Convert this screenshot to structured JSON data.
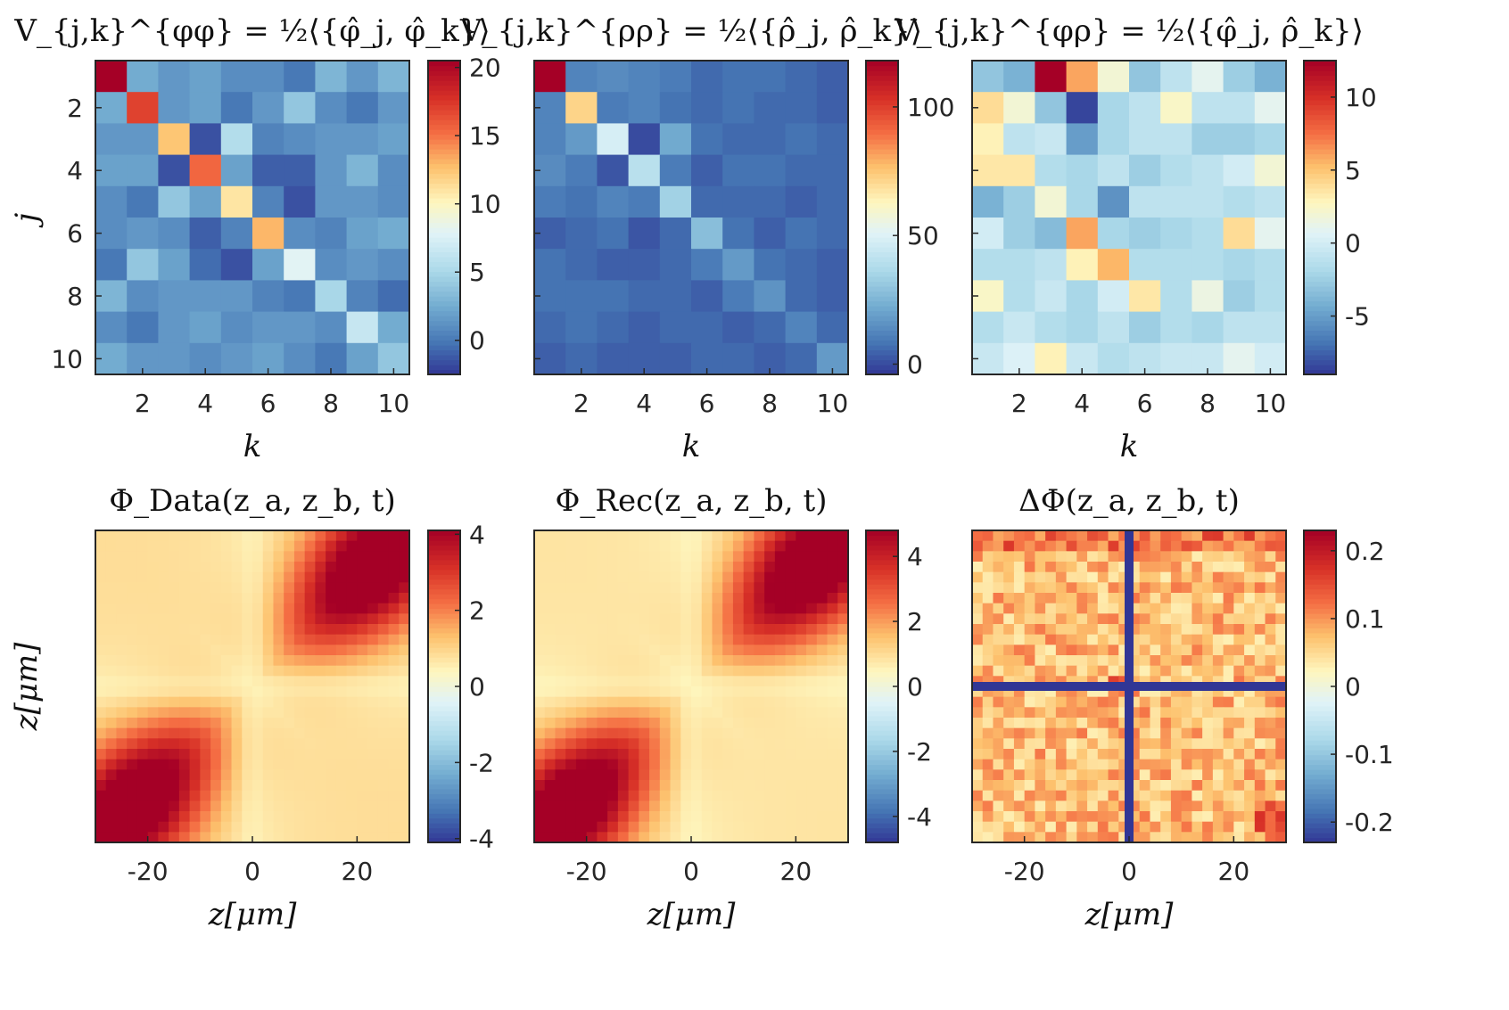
{
  "chart_data": [
    {
      "type": "heatmap",
      "title": "V_{j,k}^{φφ} = ½⟨{φ̂_j, φ̂_k}⟩",
      "xlabel": "k",
      "ylabel": "j",
      "x_ticks": [
        "2",
        "4",
        "6",
        "8",
        "10"
      ],
      "y_ticks": [
        "2",
        "4",
        "6",
        "8",
        "10"
      ],
      "colorbar": {
        "range": [
          -2.5,
          20.5
        ],
        "ticks": [
          "0",
          "5",
          "10",
          "15",
          "20"
        ]
      },
      "values": [
        [
          20.5,
          2.5,
          1.5,
          2.0,
          1.0,
          1.0,
          0.0,
          3.0,
          1.5,
          3.0
        ],
        [
          2.5,
          17.0,
          1.5,
          2.0,
          0.0,
          1.5,
          4.0,
          1.0,
          0.0,
          1.5
        ],
        [
          1.5,
          1.5,
          12.5,
          -1.5,
          5.5,
          0.5,
          1.0,
          1.5,
          1.5,
          2.0
        ],
        [
          2.0,
          2.0,
          -1.5,
          15.5,
          2.0,
          -1.0,
          -1.0,
          1.5,
          3.0,
          1.0
        ],
        [
          1.0,
          0.0,
          4.0,
          2.0,
          11.0,
          0.5,
          -1.5,
          1.5,
          1.5,
          1.0
        ],
        [
          1.0,
          1.5,
          1.0,
          -1.0,
          0.5,
          13.0,
          1.0,
          0.5,
          2.0,
          2.5
        ],
        [
          0.0,
          4.0,
          2.0,
          -0.5,
          -1.5,
          2.0,
          8.0,
          1.0,
          1.5,
          1.0
        ],
        [
          3.0,
          1.0,
          1.5,
          1.5,
          1.5,
          0.5,
          0.0,
          5.0,
          0.5,
          -0.5
        ],
        [
          1.0,
          0.0,
          1.5,
          2.0,
          1.0,
          1.5,
          1.5,
          1.0,
          6.5,
          2.5
        ],
        [
          2.5,
          1.5,
          1.5,
          1.0,
          1.5,
          2.0,
          1.0,
          0.0,
          2.0,
          4.0
        ]
      ]
    },
    {
      "type": "heatmap",
      "title": "V_{j,k}^{ρρ} = ½⟨{ρ̂_j, ρ̂_k}⟩",
      "xlabel": "k",
      "ylabel": "",
      "x_ticks": [
        "2",
        "4",
        "6",
        "8",
        "10"
      ],
      "y_ticks": [],
      "colorbar": {
        "range": [
          -4,
          118
        ],
        "ticks": [
          "0",
          "50",
          "100"
        ]
      },
      "values": [
        [
          118,
          12,
          14,
          12,
          10,
          6,
          8,
          8,
          6,
          4
        ],
        [
          12,
          72,
          10,
          12,
          8,
          6,
          8,
          6,
          6,
          4
        ],
        [
          12,
          18,
          48,
          0,
          22,
          8,
          6,
          6,
          8,
          6
        ],
        [
          14,
          10,
          2,
          40,
          10,
          4,
          8,
          8,
          6,
          6
        ],
        [
          10,
          8,
          12,
          10,
          34,
          6,
          6,
          6,
          4,
          6
        ],
        [
          4,
          6,
          8,
          2,
          6,
          28,
          8,
          4,
          8,
          6
        ],
        [
          8,
          6,
          4,
          4,
          6,
          10,
          18,
          8,
          6,
          4
        ],
        [
          8,
          8,
          8,
          6,
          6,
          4,
          10,
          16,
          6,
          4
        ],
        [
          6,
          8,
          6,
          4,
          6,
          6,
          4,
          6,
          12,
          6
        ],
        [
          4,
          6,
          4,
          4,
          4,
          6,
          6,
          4,
          6,
          18
        ]
      ]
    },
    {
      "type": "heatmap",
      "title": "V_{j,k}^{φρ} = ½⟨{φ̂_j, ρ̂_k}⟩",
      "xlabel": "k",
      "ylabel": "",
      "x_ticks": [
        "2",
        "4",
        "6",
        "8",
        "10"
      ],
      "y_ticks": [],
      "colorbar": {
        "range": [
          -9,
          12.5
        ],
        "ticks": [
          "-5",
          "0",
          "5",
          "10"
        ]
      },
      "values": [
        [
          -3,
          -4,
          12.5,
          6,
          2,
          -3,
          -1,
          1,
          -2.5,
          -4
        ],
        [
          4,
          2,
          -3,
          -8.5,
          -2,
          -1,
          2.5,
          -1,
          -1,
          1
        ],
        [
          3,
          -1,
          -0.5,
          -5,
          -2,
          -1,
          -1,
          -2.5,
          -2.5,
          -2
        ],
        [
          3.5,
          3.5,
          -1.5,
          -2,
          -1,
          -2.5,
          -1.5,
          -1,
          0,
          2
        ],
        [
          -4,
          -2.5,
          2,
          -2,
          -5.5,
          -1,
          -1,
          -1,
          -1.5,
          -1
        ],
        [
          0,
          -2.5,
          -3.5,
          6,
          -2,
          -2.5,
          -2,
          -1.5,
          4,
          1
        ],
        [
          -1.5,
          -1.5,
          -1,
          3,
          5.5,
          -1.5,
          -1.5,
          -1.5,
          -2,
          -1.5
        ],
        [
          2.5,
          -1.5,
          -0.5,
          -2,
          0,
          3.5,
          -1.5,
          1.5,
          -2.5,
          -1.5
        ],
        [
          -1.5,
          -0.5,
          -1.5,
          -2,
          -1,
          -2.5,
          -1.5,
          -2,
          -1,
          -1
        ],
        [
          -0.5,
          0.5,
          3,
          -0.5,
          -1.5,
          -1,
          -0.5,
          -0.5,
          1,
          0
        ]
      ]
    },
    {
      "type": "heatmap",
      "title": "Φ_Data(z_a, z_b, t)",
      "xlabel": "z[μm]",
      "ylabel": "z[μm]",
      "x_ticks": [
        "-20",
        "0",
        "20"
      ],
      "x_tick_values": [
        -20,
        0,
        20
      ],
      "xlim": [
        -30,
        30
      ],
      "colorbar": {
        "range": [
          -4.1,
          4.1
        ],
        "ticks": [
          "-4",
          "-2",
          "0",
          "2",
          "4"
        ]
      },
      "peak_value": 4.1,
      "field": "smooth saddle: positive lobes along the main diagonal, low ridge near z_a=0 and z_b=0"
    },
    {
      "type": "heatmap",
      "title": "Φ_Rec(z_a, z_b, t)",
      "xlabel": "z[μm]",
      "ylabel": "",
      "x_ticks": [
        "-20",
        "0",
        "20"
      ],
      "x_tick_values": [
        -20,
        0,
        20
      ],
      "xlim": [
        -30,
        30
      ],
      "colorbar": {
        "range": [
          -4.8,
          4.8
        ],
        "ticks": [
          "-4",
          "-2",
          "0",
          "2",
          "4"
        ]
      },
      "peak_value": 4.8,
      "field": "reconstruction of the Φ_Data field"
    },
    {
      "type": "heatmap",
      "title": "ΔΦ(z_a, z_b, t)",
      "xlabel": "z[μm]",
      "ylabel": "",
      "x_ticks": [
        "-20",
        "0",
        "20"
      ],
      "x_tick_values": [
        -20,
        0,
        20
      ],
      "xlim": [
        -30,
        30
      ],
      "colorbar": {
        "range": [
          -0.23,
          0.23
        ],
        "ticks": [
          "-0.2",
          "-0.1",
          "0",
          "0.1",
          "0.2"
        ]
      },
      "masked_lines_at": [
        0
      ],
      "field": "small noisy residual, mostly positive"
    }
  ]
}
